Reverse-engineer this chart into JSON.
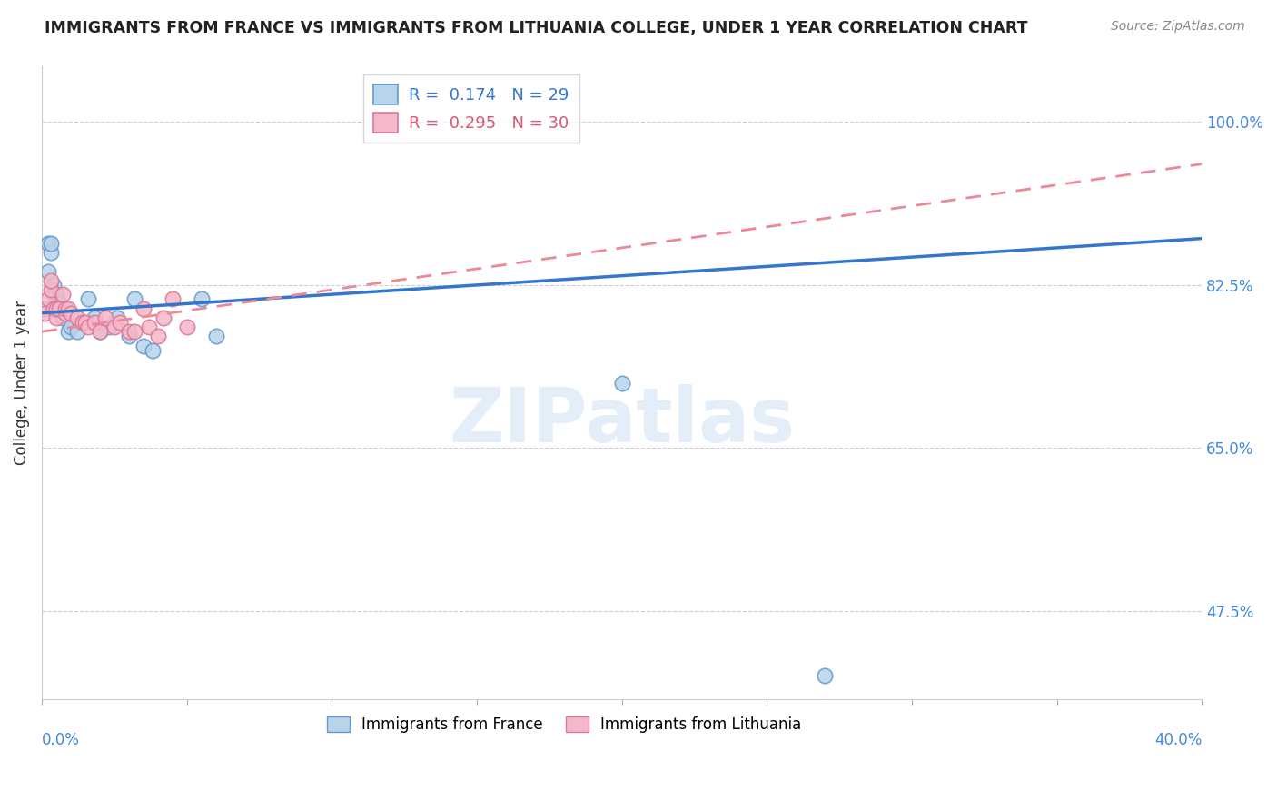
{
  "title": "IMMIGRANTS FROM FRANCE VS IMMIGRANTS FROM LITHUANIA COLLEGE, UNDER 1 YEAR CORRELATION CHART",
  "source": "Source: ZipAtlas.com",
  "ylabel": "College, Under 1 year",
  "legend_label_france": "Immigrants from France",
  "legend_label_lithuania": "Immigrants from Lithuania",
  "france_color": "#b8d4ea",
  "france_edge": "#6699cc",
  "lithuania_color": "#f5b8c8",
  "lithuania_edge": "#dd7799",
  "france_R": 0.174,
  "france_N": 29,
  "lithuania_R": 0.295,
  "lithuania_N": 30,
  "france_x": [
    0.001,
    0.002,
    0.002,
    0.003,
    0.003,
    0.004,
    0.004,
    0.005,
    0.006,
    0.006,
    0.007,
    0.008,
    0.009,
    0.01,
    0.012,
    0.014,
    0.016,
    0.018,
    0.02,
    0.023,
    0.026,
    0.03,
    0.032,
    0.035,
    0.038,
    0.055,
    0.06,
    0.2,
    0.27
  ],
  "france_y": [
    0.8,
    0.87,
    0.84,
    0.86,
    0.87,
    0.825,
    0.815,
    0.815,
    0.8,
    0.805,
    0.79,
    0.8,
    0.775,
    0.78,
    0.775,
    0.785,
    0.81,
    0.79,
    0.775,
    0.78,
    0.79,
    0.77,
    0.81,
    0.76,
    0.755,
    0.81,
    0.77,
    0.72,
    0.405
  ],
  "lithuania_x": [
    0.001,
    0.002,
    0.003,
    0.003,
    0.004,
    0.005,
    0.005,
    0.006,
    0.007,
    0.008,
    0.008,
    0.009,
    0.01,
    0.012,
    0.014,
    0.015,
    0.016,
    0.018,
    0.02,
    0.022,
    0.025,
    0.027,
    0.03,
    0.032,
    0.035,
    0.037,
    0.04,
    0.042,
    0.045,
    0.05
  ],
  "lithuania_y": [
    0.795,
    0.81,
    0.82,
    0.83,
    0.8,
    0.79,
    0.8,
    0.8,
    0.815,
    0.795,
    0.8,
    0.8,
    0.795,
    0.79,
    0.785,
    0.785,
    0.78,
    0.785,
    0.775,
    0.79,
    0.78,
    0.785,
    0.775,
    0.775,
    0.8,
    0.78,
    0.77,
    0.79,
    0.81,
    0.78
  ],
  "france_trend_x": [
    0.0,
    0.4
  ],
  "france_trend_y": [
    0.795,
    0.875
  ],
  "lithuania_trend_x": [
    0.0,
    0.4
  ],
  "lithuania_trend_y": [
    0.775,
    0.955
  ],
  "xmin": 0.0,
  "xmax": 0.4,
  "ymin": 0.38,
  "ymax": 1.06,
  "ytick_vals": [
    1.0,
    0.825,
    0.65,
    0.475
  ],
  "ytick_labels": [
    "100.0%",
    "82.5%",
    "65.0%",
    "47.5%"
  ],
  "xtick_vals": [
    0.0,
    0.05,
    0.1,
    0.15,
    0.2,
    0.25,
    0.3,
    0.35,
    0.4
  ],
  "watermark_text": "ZIPatlas",
  "title_fontsize": 12.5,
  "source_fontsize": 10,
  "tick_label_fontsize": 12,
  "ylabel_fontsize": 12,
  "legend_fontsize": 13
}
